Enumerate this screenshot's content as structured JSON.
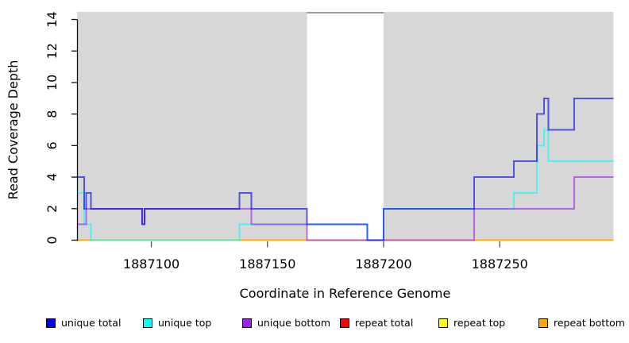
{
  "chart_data": {
    "type": "line",
    "subtype": "step-coverage",
    "title": "",
    "xlabel": "Coordinate in Reference Genome",
    "ylabel": "Read Coverage Depth",
    "xlim": [
      1887068,
      1887299
    ],
    "ylim": [
      0,
      14
    ],
    "x_ticks": [
      1887100,
      1887150,
      1887200,
      1887250
    ],
    "y_ticks": [
      0,
      2,
      4,
      6,
      8,
      10,
      12,
      14
    ],
    "grid": false,
    "legend_position": "bottom",
    "background_shading": {
      "color": "#d7d7d7",
      "regions": [
        [
          1887068,
          1887167
        ],
        [
          1887200,
          1887299
        ]
      ],
      "gap_top_line_color": "#9a9a9a"
    },
    "series": [
      {
        "name": "repeat total",
        "color": "#FF0000",
        "opacity": 0.62,
        "steps": [
          [
            1887068,
            0
          ]
        ]
      },
      {
        "name": "repeat top",
        "color": "#FFFF00",
        "opacity": 0.62,
        "steps": [
          [
            1887068,
            0
          ]
        ]
      },
      {
        "name": "repeat bottom",
        "color": "#FFA500",
        "opacity": 0.72,
        "steps": [
          [
            1887068,
            0
          ]
        ]
      },
      {
        "name": "unique top",
        "color": "#00FFFF",
        "opacity": 0.62,
        "steps": [
          [
            1887068,
            3
          ],
          [
            1887071,
            1
          ],
          [
            1887074,
            0
          ],
          [
            1887138,
            1
          ],
          [
            1887193,
            0
          ],
          [
            1887200,
            2
          ],
          [
            1887256,
            3
          ],
          [
            1887266,
            6
          ],
          [
            1887269,
            7
          ],
          [
            1887271,
            5
          ]
        ]
      },
      {
        "name": "unique bottom",
        "color": "#A020F0",
        "opacity": 0.62,
        "steps": [
          [
            1887068,
            1
          ],
          [
            1887072,
            2
          ],
          [
            1887096,
            1
          ],
          [
            1887097,
            2
          ],
          [
            1887143,
            1
          ],
          [
            1887167,
            0
          ],
          [
            1887239,
            2
          ],
          [
            1887282,
            4
          ]
        ]
      },
      {
        "name": "unique total",
        "color": "#0000EE",
        "opacity": 0.62,
        "steps": [
          [
            1887068,
            4
          ],
          [
            1887071,
            2
          ],
          [
            1887072,
            3
          ],
          [
            1887074,
            2
          ],
          [
            1887096,
            1
          ],
          [
            1887097,
            2
          ],
          [
            1887138,
            3
          ],
          [
            1887143,
            2
          ],
          [
            1887167,
            1
          ],
          [
            1887193,
            0
          ],
          [
            1887200,
            2
          ],
          [
            1887239,
            4
          ],
          [
            1887256,
            5
          ],
          [
            1887266,
            8
          ],
          [
            1887269,
            9
          ],
          [
            1887271,
            7
          ],
          [
            1887282,
            9
          ]
        ]
      }
    ]
  },
  "legend": {
    "items": [
      {
        "label": "unique total",
        "color": "#0000EE"
      },
      {
        "label": "unique top",
        "color": "#00FFFF"
      },
      {
        "label": "unique bottom",
        "color": "#A020F0"
      },
      {
        "label": "repeat total",
        "color": "#FF0000"
      },
      {
        "label": "repeat top",
        "color": "#FFFF00"
      },
      {
        "label": "repeat bottom",
        "color": "#FFA500"
      }
    ]
  }
}
